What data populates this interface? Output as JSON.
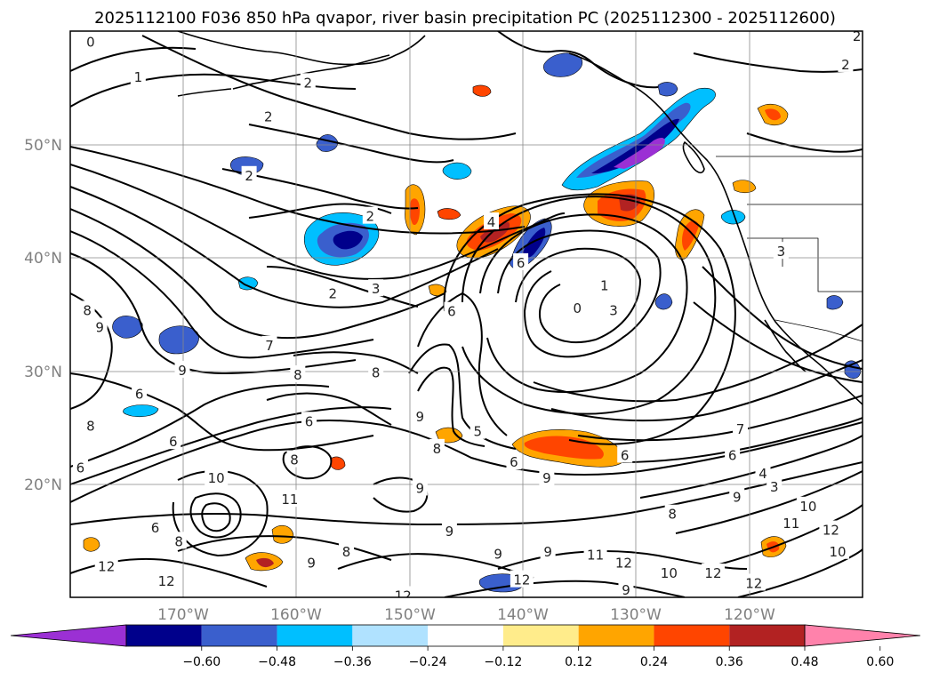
{
  "figure": {
    "title": "2025112100 F036 850 hPa qvapor, river basin precipitation PC (2025112300 - 2025112600)"
  },
  "map": {
    "lon_range": [
      -179,
      -109
    ],
    "lat_range": [
      10,
      60
    ],
    "lon_ticks": [
      -170,
      -160,
      -150,
      -140,
      -130,
      -120
    ],
    "lon_labels": [
      "170°W",
      "160°W",
      "150°W",
      "140°W",
      "130°W",
      "120°W"
    ],
    "lat_ticks": [
      20,
      30,
      40,
      50
    ],
    "lat_labels": [
      "20°N",
      "30°N",
      "40°N",
      "50°N"
    ],
    "gridlines": true
  },
  "colorbar": {
    "colors": [
      "#9b30d4",
      "#00008b",
      "#3a5fcd",
      "#00bfff",
      "#b0e2ff",
      "#ffffff",
      "#ffec8b",
      "#ffa500",
      "#ff4500",
      "#b22222",
      "#ff82ab"
    ],
    "ticks": [
      "−0.60",
      "−0.48",
      "−0.36",
      "−0.24",
      "−0.12",
      "0.12",
      "0.24",
      "0.36",
      "0.48",
      "0.60"
    ],
    "extend": "both"
  },
  "contour_labels": [
    {
      "t": "0",
      "lon": -177.2,
      "lat": 59.1
    },
    {
      "t": "1",
      "lon": -173.0,
      "lat": 56.0
    },
    {
      "t": "2",
      "lon": -158.0,
      "lat": 55.5
    },
    {
      "t": "2",
      "lon": -161.5,
      "lat": 52.5
    },
    {
      "t": "2",
      "lon": -163.2,
      "lat": 47.3
    },
    {
      "t": "2",
      "lon": -152.5,
      "lat": 43.7
    },
    {
      "t": "2",
      "lon": -155.8,
      "lat": 36.9
    },
    {
      "t": "3",
      "lon": -152.0,
      "lat": 37.3
    },
    {
      "t": "4",
      "lon": -141.8,
      "lat": 43.2
    },
    {
      "t": "6",
      "lon": -139.2,
      "lat": 39.6
    },
    {
      "t": "6",
      "lon": -145.3,
      "lat": 35.3
    },
    {
      "t": "1",
      "lon": -131.8,
      "lat": 37.6
    },
    {
      "t": "0",
      "lon": -134.2,
      "lat": 35.6
    },
    {
      "t": "3",
      "lon": -131.0,
      "lat": 35.4
    },
    {
      "t": "2",
      "lon": -110.5,
      "lat": 57.1
    },
    {
      "t": "2",
      "lon": -109.5,
      "lat": 59.6
    },
    {
      "t": "8",
      "lon": -177.5,
      "lat": 35.4
    },
    {
      "t": "9",
      "lon": -176.4,
      "lat": 33.9
    },
    {
      "t": "7",
      "lon": -161.4,
      "lat": 32.3
    },
    {
      "t": "9",
      "lon": -169.1,
      "lat": 30.1
    },
    {
      "t": "8",
      "lon": -158.9,
      "lat": 29.7
    },
    {
      "t": "8",
      "lon": -152.0,
      "lat": 29.9
    },
    {
      "t": "6",
      "lon": -172.9,
      "lat": 28.0
    },
    {
      "t": "8",
      "lon": -177.2,
      "lat": 25.2
    },
    {
      "t": "6",
      "lon": -157.9,
      "lat": 25.6
    },
    {
      "t": "9",
      "lon": -148.1,
      "lat": 26.0
    },
    {
      "t": "8",
      "lon": -146.6,
      "lat": 23.2
    },
    {
      "t": "6",
      "lon": -169.9,
      "lat": 23.8
    },
    {
      "t": "8",
      "lon": -159.2,
      "lat": 22.2
    },
    {
      "t": "6",
      "lon": -178.1,
      "lat": 21.5
    },
    {
      "t": "10",
      "lon": -166.1,
      "lat": 20.6
    },
    {
      "t": "11",
      "lon": -159.6,
      "lat": 18.7
    },
    {
      "t": "9",
      "lon": -148.1,
      "lat": 19.7
    },
    {
      "t": "9",
      "lon": -136.9,
      "lat": 20.6
    },
    {
      "t": "6",
      "lon": -139.8,
      "lat": 22.0
    },
    {
      "t": "6",
      "lon": -130.0,
      "lat": 22.6
    },
    {
      "t": "5",
      "lon": -143.0,
      "lat": 24.7
    },
    {
      "t": "7",
      "lon": -119.8,
      "lat": 24.9
    },
    {
      "t": "6",
      "lon": -120.5,
      "lat": 22.6
    },
    {
      "t": "4",
      "lon": -117.8,
      "lat": 21.0
    },
    {
      "t": "3",
      "lon": -116.8,
      "lat": 19.8
    },
    {
      "t": "9",
      "lon": -120.1,
      "lat": 18.9
    },
    {
      "t": "8",
      "lon": -125.8,
      "lat": 17.4
    },
    {
      "t": "10",
      "lon": -113.8,
      "lat": 18.1
    },
    {
      "t": "11",
      "lon": -115.3,
      "lat": 16.6
    },
    {
      "t": "12",
      "lon": -111.8,
      "lat": 16.0
    },
    {
      "t": "10",
      "lon": -111.2,
      "lat": 14.1
    },
    {
      "t": "9",
      "lon": -145.5,
      "lat": 15.9
    },
    {
      "t": "8",
      "lon": -154.6,
      "lat": 14.1
    },
    {
      "t": "9",
      "lon": -157.7,
      "lat": 13.1
    },
    {
      "t": "9",
      "lon": -141.2,
      "lat": 13.9
    },
    {
      "t": "9",
      "lon": -136.8,
      "lat": 14.1
    },
    {
      "t": "11",
      "lon": -132.6,
      "lat": 13.8
    },
    {
      "t": "12",
      "lon": -130.1,
      "lat": 13.1
    },
    {
      "t": "10",
      "lon": -126.1,
      "lat": 12.2
    },
    {
      "t": "12",
      "lon": -122.2,
      "lat": 12.2
    },
    {
      "t": "12",
      "lon": -118.6,
      "lat": 11.3
    },
    {
      "t": "12",
      "lon": -175.8,
      "lat": 12.8
    },
    {
      "t": "12",
      "lon": -170.5,
      "lat": 11.5
    },
    {
      "t": "12",
      "lon": -139.1,
      "lat": 11.6
    },
    {
      "t": "9",
      "lon": -129.9,
      "lat": 10.7
    },
    {
      "t": "12",
      "lon": -149.6,
      "lat": 10.2
    },
    {
      "t": "6",
      "lon": -171.5,
      "lat": 16.2
    },
    {
      "t": "8",
      "lon": -169.4,
      "lat": 15.0
    },
    {
      "t": "3",
      "lon": -116.2,
      "lat": 40.6
    }
  ]
}
